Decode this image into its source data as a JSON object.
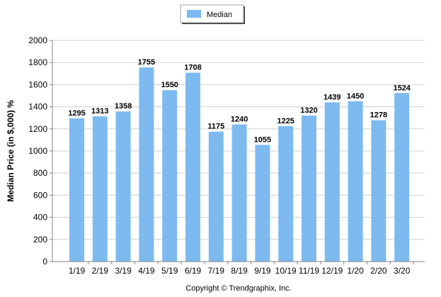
{
  "chart_data": {
    "type": "bar",
    "categories": [
      "1/19",
      "2/19",
      "3/19",
      "4/19",
      "5/19",
      "6/19",
      "7/19",
      "8/19",
      "9/19",
      "10/19",
      "11/19",
      "12/19",
      "1/20",
      "2/20",
      "3/20"
    ],
    "series": [
      {
        "name": "Median",
        "values": [
          1295,
          1313,
          1358,
          1755,
          1550,
          1708,
          1175,
          1240,
          1055,
          1225,
          1320,
          1439,
          1450,
          1278,
          1524
        ],
        "color": "#7cbaf0"
      }
    ],
    "ylabel": "Median Price (in $,000) %",
    "xlabel": "",
    "ylim": [
      0,
      2000
    ],
    "yticks": [
      0,
      200,
      400,
      600,
      800,
      1000,
      1200,
      1400,
      1600,
      1800,
      2000
    ],
    "grid": true,
    "legend_position": "top-center",
    "data_labels": true
  },
  "footer": {
    "copyright": "Copyright © Trendgraphix, Inc."
  },
  "colors": {
    "bar": "#7cbaf0",
    "grid": "#d0d0d0",
    "axis": "#808080",
    "background": "#ffffff"
  }
}
